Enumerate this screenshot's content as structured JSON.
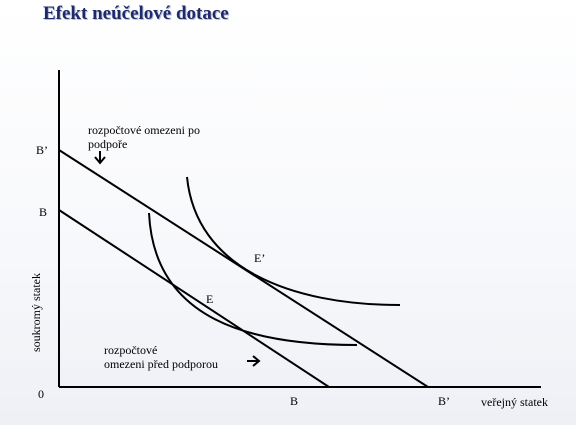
{
  "title": "Efekt neúčelové dotace",
  "axes": {
    "x_label": "veřejný statek",
    "y_label": "soukromý statek",
    "origin": "0"
  },
  "intercepts": {
    "y_new": "B’",
    "y_old": "B",
    "x_old": "B",
    "x_new": "B’"
  },
  "points": {
    "e_new": "E’",
    "e_old": "E"
  },
  "annotations": {
    "after_line1": "rozpočtové omezeni po",
    "after_line2": "podpoře",
    "after_arrow": "🡣",
    "before_line1": "rozpočtové",
    "before_line2": "omezeni před podporou",
    "before_arrow": "➔"
  }
}
